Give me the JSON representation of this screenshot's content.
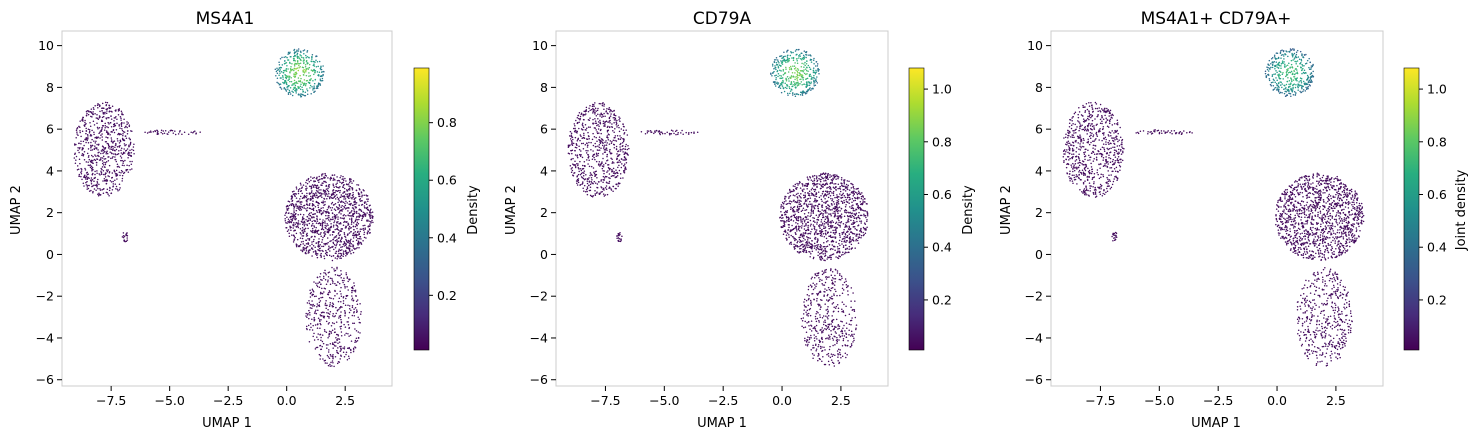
{
  "chart_data": [
    {
      "type": "scatter",
      "title": "MS4A1",
      "xlabel": "UMAP 1",
      "ylabel": "UMAP 2",
      "xlim": [
        -9.6,
        4.5
      ],
      "ylim": [
        -6.3,
        10.7
      ],
      "xticks": [
        -7.5,
        -5.0,
        -2.5,
        0.0,
        2.5
      ],
      "xtick_labels": [
        "−7.5",
        "−5.0",
        "−2.5",
        "0.0",
        "2.5"
      ],
      "yticks": [
        -6,
        -4,
        -2,
        0,
        2,
        4,
        6,
        8,
        10
      ],
      "ytick_labels": [
        "−6",
        "−4",
        "−2",
        "0",
        "2",
        "4",
        "6",
        "8",
        "10"
      ],
      "colorbar": {
        "label": "Density",
        "vmin": 0.01,
        "vmax": 0.99,
        "ticks": [
          0.2,
          0.4,
          0.6,
          0.8
        ],
        "tick_labels": [
          "0.2",
          "0.4",
          "0.6",
          "0.8"
        ]
      },
      "colormap": "viridis",
      "clusters": [
        {
          "cx": -7.8,
          "cy": 5.0,
          "rx": 1.3,
          "ry": 2.3,
          "n": 700,
          "density": 0.03
        },
        {
          "cx": 1.8,
          "cy": 1.8,
          "rx": 1.9,
          "ry": 2.1,
          "n": 1300,
          "density": 0.03
        },
        {
          "cx": 2.0,
          "cy": -3.0,
          "rx": 1.2,
          "ry": 2.4,
          "n": 450,
          "density": 0.03
        },
        {
          "cx": 0.55,
          "cy": 8.7,
          "rx": 1.05,
          "ry": 1.15,
          "n": 400,
          "density": 0.8
        },
        {
          "cx": -4.8,
          "cy": 5.85,
          "rx": 1.3,
          "ry": 0.12,
          "n": 45,
          "density": 0.03
        },
        {
          "cx": -6.9,
          "cy": 0.85,
          "rx": 0.12,
          "ry": 0.25,
          "n": 20,
          "density": 0.03
        }
      ]
    },
    {
      "type": "scatter",
      "title": "CD79A",
      "xlabel": "UMAP 1",
      "ylabel": "UMAP 2",
      "xlim": [
        -9.6,
        4.5
      ],
      "ylim": [
        -6.3,
        10.7
      ],
      "xticks": [
        -7.5,
        -5.0,
        -2.5,
        0.0,
        2.5
      ],
      "xtick_labels": [
        "−7.5",
        "−5.0",
        "−2.5",
        "0.0",
        "2.5"
      ],
      "yticks": [
        -6,
        -4,
        -2,
        0,
        2,
        4,
        6,
        8,
        10
      ],
      "ytick_labels": [
        "−6",
        "−4",
        "−2",
        "0",
        "2",
        "4",
        "6",
        "8",
        "10"
      ],
      "colorbar": {
        "label": "Density",
        "vmin": 0.01,
        "vmax": 1.08,
        "ticks": [
          0.2,
          0.4,
          0.6,
          0.8,
          1.0
        ],
        "tick_labels": [
          "0.2",
          "0.4",
          "0.6",
          "0.8",
          "1.0"
        ]
      },
      "colormap": "viridis",
      "clusters": [
        {
          "cx": -7.8,
          "cy": 5.0,
          "rx": 1.3,
          "ry": 2.3,
          "n": 700,
          "density": 0.03
        },
        {
          "cx": 1.8,
          "cy": 1.8,
          "rx": 1.9,
          "ry": 2.1,
          "n": 1300,
          "density": 0.03
        },
        {
          "cx": 2.0,
          "cy": -3.0,
          "rx": 1.2,
          "ry": 2.4,
          "n": 450,
          "density": 0.03
        },
        {
          "cx": 0.55,
          "cy": 8.7,
          "rx": 1.05,
          "ry": 1.15,
          "n": 400,
          "density": 0.85
        },
        {
          "cx": -4.8,
          "cy": 5.85,
          "rx": 1.3,
          "ry": 0.12,
          "n": 45,
          "density": 0.03
        },
        {
          "cx": -6.9,
          "cy": 0.85,
          "rx": 0.12,
          "ry": 0.25,
          "n": 20,
          "density": 0.03
        }
      ]
    },
    {
      "type": "scatter",
      "title": "MS4A1+ CD79A+",
      "xlabel": "UMAP 1",
      "ylabel": "UMAP 2",
      "xlim": [
        -9.6,
        4.5
      ],
      "ylim": [
        -6.3,
        10.7
      ],
      "xticks": [
        -7.5,
        -5.0,
        -2.5,
        0.0,
        2.5
      ],
      "xtick_labels": [
        "−7.5",
        "−5.0",
        "−2.5",
        "0.0",
        "2.5"
      ],
      "yticks": [
        -6,
        -4,
        -2,
        0,
        2,
        4,
        6,
        8,
        10
      ],
      "ytick_labels": [
        "−6",
        "−4",
        "−2",
        "0",
        "2",
        "4",
        "6",
        "8",
        "10"
      ],
      "colorbar": {
        "label": "Joint density",
        "vmin": 0.01,
        "vmax": 1.08,
        "ticks": [
          0.2,
          0.4,
          0.6,
          0.8,
          1.0
        ],
        "tick_labels": [
          "0.2",
          "0.4",
          "0.6",
          "0.8",
          "1.0"
        ]
      },
      "colormap": "viridis",
      "clusters": [
        {
          "cx": -7.8,
          "cy": 5.0,
          "rx": 1.3,
          "ry": 2.3,
          "n": 700,
          "density": 0.03
        },
        {
          "cx": 1.8,
          "cy": 1.8,
          "rx": 1.9,
          "ry": 2.1,
          "n": 1300,
          "density": 0.03
        },
        {
          "cx": 2.0,
          "cy": -3.0,
          "rx": 1.2,
          "ry": 2.4,
          "n": 450,
          "density": 0.03
        },
        {
          "cx": 0.55,
          "cy": 8.7,
          "rx": 1.05,
          "ry": 1.15,
          "n": 400,
          "density": 0.75
        },
        {
          "cx": -4.8,
          "cy": 5.85,
          "rx": 1.3,
          "ry": 0.12,
          "n": 45,
          "density": 0.03
        },
        {
          "cx": -6.9,
          "cy": 0.85,
          "rx": 0.12,
          "ry": 0.25,
          "n": 20,
          "density": 0.03
        }
      ]
    }
  ]
}
